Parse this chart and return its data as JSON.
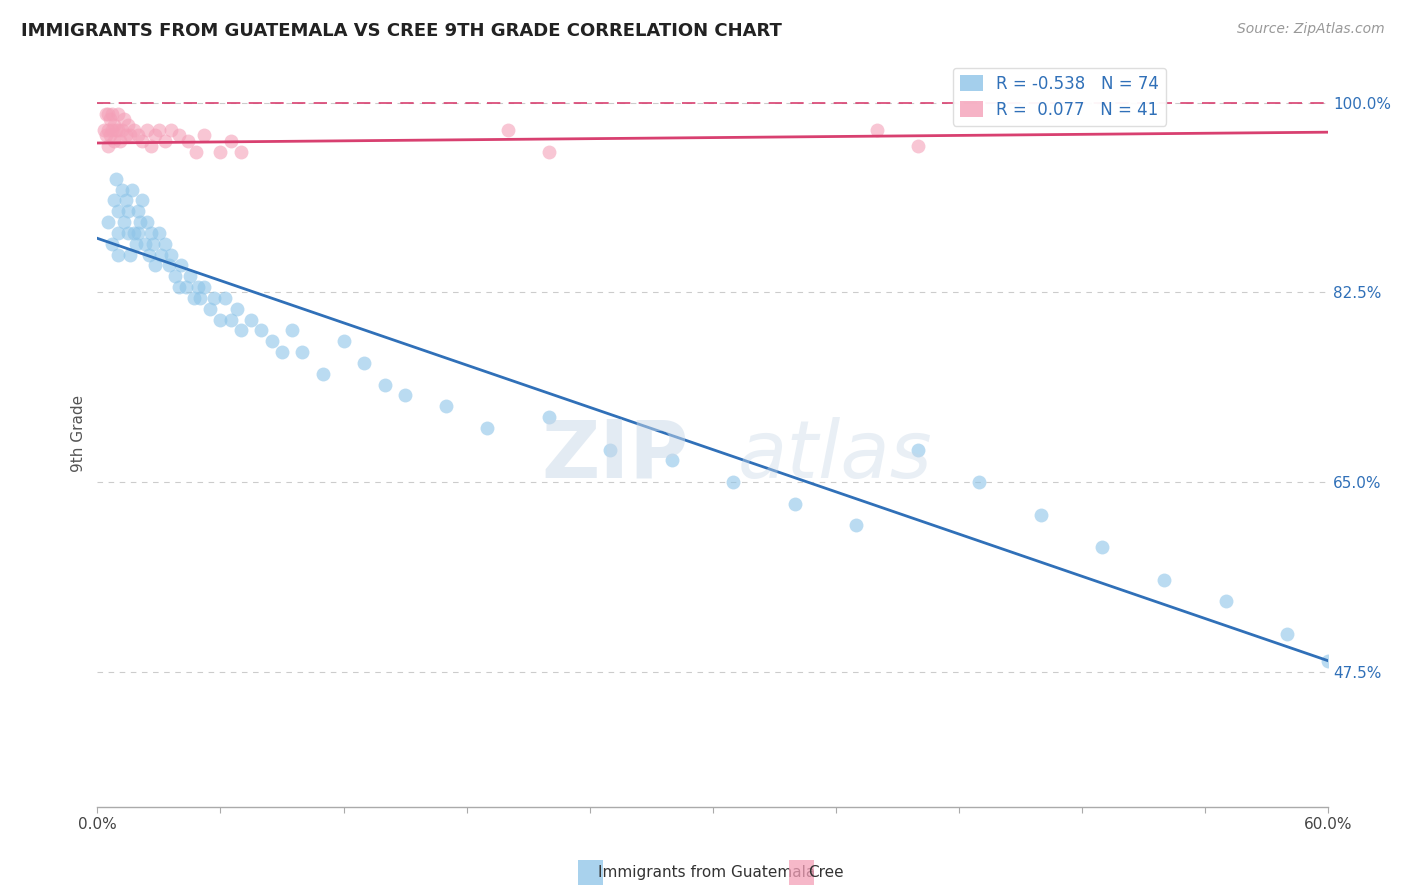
{
  "title": "IMMIGRANTS FROM GUATEMALA VS CREE 9TH GRADE CORRELATION CHART",
  "source_text": "Source: ZipAtlas.com",
  "ylabel": "9th Grade",
  "xlim": [
    0.0,
    0.6
  ],
  "ylim": [
    0.35,
    1.04
  ],
  "ytick_positions": [
    0.475,
    0.65,
    0.825,
    1.0
  ],
  "ytick_labels": [
    "47.5%",
    "65.0%",
    "82.5%",
    "100.0%"
  ],
  "blue_R": -0.538,
  "blue_N": 74,
  "pink_R": 0.077,
  "pink_N": 41,
  "blue_color": "#8dc4e8",
  "pink_color": "#f4a0b8",
  "blue_line_color": "#3070b8",
  "pink_line_color": "#d84070",
  "legend_label_blue": "Immigrants from Guatemala",
  "legend_label_pink": "Cree",
  "watermark_zip": "ZIP",
  "watermark_atlas": "atlas",
  "blue_scatter_x": [
    0.005,
    0.007,
    0.008,
    0.009,
    0.01,
    0.01,
    0.01,
    0.012,
    0.013,
    0.014,
    0.015,
    0.015,
    0.016,
    0.017,
    0.018,
    0.019,
    0.02,
    0.02,
    0.021,
    0.022,
    0.023,
    0.024,
    0.025,
    0.026,
    0.027,
    0.028,
    0.03,
    0.031,
    0.033,
    0.035,
    0.036,
    0.038,
    0.04,
    0.041,
    0.043,
    0.045,
    0.047,
    0.049,
    0.05,
    0.052,
    0.055,
    0.057,
    0.06,
    0.062,
    0.065,
    0.068,
    0.07,
    0.075,
    0.08,
    0.085,
    0.09,
    0.095,
    0.1,
    0.11,
    0.12,
    0.13,
    0.14,
    0.15,
    0.17,
    0.19,
    0.22,
    0.25,
    0.28,
    0.31,
    0.34,
    0.37,
    0.4,
    0.43,
    0.46,
    0.49,
    0.52,
    0.55,
    0.58,
    0.6
  ],
  "blue_scatter_y": [
    0.89,
    0.87,
    0.91,
    0.93,
    0.9,
    0.88,
    0.86,
    0.92,
    0.89,
    0.91,
    0.9,
    0.88,
    0.86,
    0.92,
    0.88,
    0.87,
    0.9,
    0.88,
    0.89,
    0.91,
    0.87,
    0.89,
    0.86,
    0.88,
    0.87,
    0.85,
    0.88,
    0.86,
    0.87,
    0.85,
    0.86,
    0.84,
    0.83,
    0.85,
    0.83,
    0.84,
    0.82,
    0.83,
    0.82,
    0.83,
    0.81,
    0.82,
    0.8,
    0.82,
    0.8,
    0.81,
    0.79,
    0.8,
    0.79,
    0.78,
    0.77,
    0.79,
    0.77,
    0.75,
    0.78,
    0.76,
    0.74,
    0.73,
    0.72,
    0.7,
    0.71,
    0.68,
    0.67,
    0.65,
    0.63,
    0.61,
    0.68,
    0.65,
    0.62,
    0.59,
    0.56,
    0.54,
    0.51,
    0.485
  ],
  "pink_scatter_x": [
    0.003,
    0.004,
    0.004,
    0.005,
    0.005,
    0.005,
    0.006,
    0.006,
    0.007,
    0.007,
    0.008,
    0.008,
    0.009,
    0.01,
    0.01,
    0.011,
    0.012,
    0.013,
    0.014,
    0.015,
    0.016,
    0.018,
    0.02,
    0.022,
    0.024,
    0.026,
    0.028,
    0.03,
    0.033,
    0.036,
    0.04,
    0.044,
    0.048,
    0.052,
    0.06,
    0.065,
    0.07,
    0.2,
    0.22,
    0.38,
    0.4
  ],
  "pink_scatter_y": [
    0.975,
    0.99,
    0.97,
    0.99,
    0.975,
    0.96,
    0.985,
    0.97,
    0.99,
    0.975,
    0.98,
    0.965,
    0.975,
    0.99,
    0.975,
    0.965,
    0.975,
    0.985,
    0.97,
    0.98,
    0.97,
    0.975,
    0.97,
    0.965,
    0.975,
    0.96,
    0.97,
    0.975,
    0.965,
    0.975,
    0.97,
    0.965,
    0.955,
    0.97,
    0.955,
    0.965,
    0.955,
    0.975,
    0.955,
    0.975,
    0.96
  ],
  "blue_line_x": [
    0.0,
    0.6
  ],
  "blue_line_y": [
    0.875,
    0.485
  ],
  "pink_line_x": [
    0.0,
    0.6
  ],
  "pink_line_y": [
    0.963,
    0.973
  ],
  "hline_y": 1.0,
  "hline_color": "#d84070",
  "grid_color": "#cccccc",
  "background_color": "#ffffff"
}
